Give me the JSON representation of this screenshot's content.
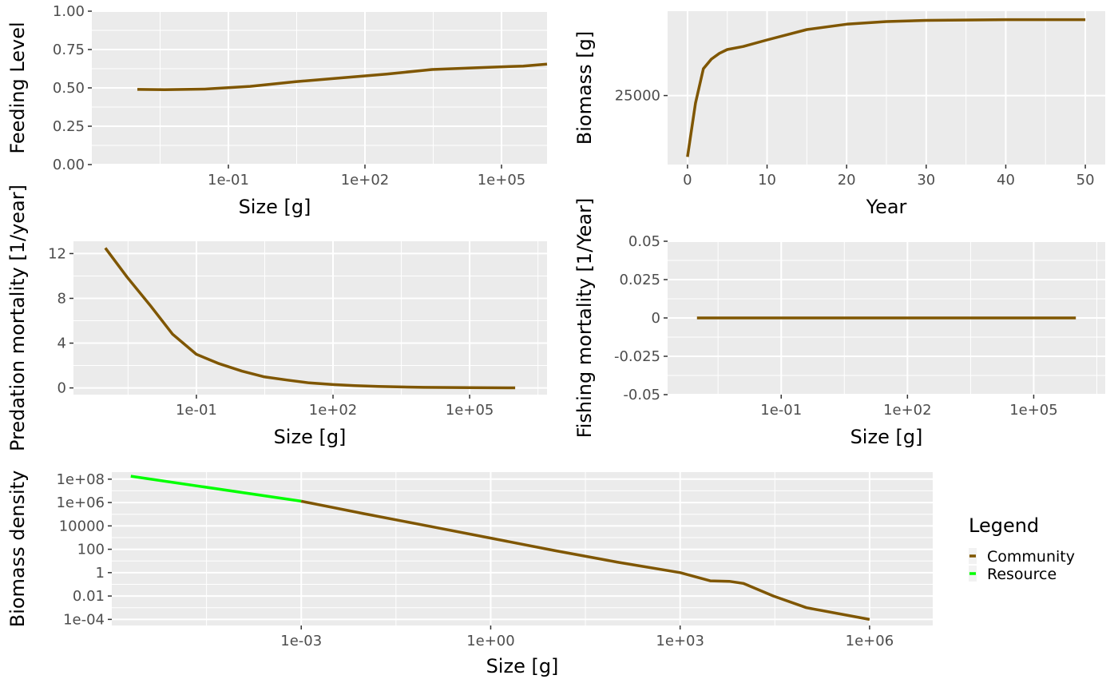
{
  "colors": {
    "community": "#7f5600",
    "resource": "#00ff00",
    "panel_bg": "#ebebeb",
    "grid": "#ffffff",
    "tick_text": "#4d4d4d"
  },
  "chart_data": [
    {
      "id": "feeding-level",
      "type": "line",
      "xlabel": "Size [g]",
      "ylabel": "Feeding Level",
      "xscale": "log10",
      "xlim": [
        0.0001,
        1000000
      ],
      "ylim": [
        0,
        1
      ],
      "xticks": [
        {
          "value": 0.1,
          "label": "1e-01"
        },
        {
          "value": 100,
          "label": "1e+02"
        },
        {
          "value": 100000,
          "label": "1e+05"
        }
      ],
      "yticks": [
        {
          "value": 0,
          "label": "0.00"
        },
        {
          "value": 0.25,
          "label": "0.25"
        },
        {
          "value": 0.5,
          "label": "0.50"
        },
        {
          "value": 0.75,
          "label": "0.75"
        },
        {
          "value": 1,
          "label": "1.00"
        }
      ],
      "grid": true,
      "series": [
        {
          "color": "community",
          "x": [
            0.001,
            0.004,
            0.03,
            0.3,
            3,
            30,
            300,
            3000,
            30000,
            300000,
            1000000
          ],
          "y": [
            0.49,
            0.488,
            0.492,
            0.51,
            0.54,
            0.565,
            0.59,
            0.62,
            0.632,
            0.642,
            0.655
          ]
        }
      ]
    },
    {
      "id": "biomass-time",
      "type": "line",
      "xlabel": "Year",
      "ylabel": "Biomass [g]",
      "xscale": "linear",
      "xlim": [
        -2.5,
        52.5
      ],
      "ylim": [
        7000,
        47000
      ],
      "xticks": [
        {
          "value": 0,
          "label": "0"
        },
        {
          "value": 10,
          "label": "10"
        },
        {
          "value": 20,
          "label": "20"
        },
        {
          "value": 30,
          "label": "30"
        },
        {
          "value": 40,
          "label": "40"
        },
        {
          "value": 50,
          "label": "50"
        }
      ],
      "yticks": [
        {
          "value": 25000,
          "label": "25000"
        }
      ],
      "grid": true,
      "series": [
        {
          "color": "community",
          "x": [
            0,
            1,
            2,
            3,
            4,
            5,
            7,
            10,
            15,
            20,
            25,
            30,
            40,
            50
          ],
          "y": [
            9000,
            23000,
            32000,
            34500,
            36000,
            37000,
            37800,
            39500,
            42200,
            43600,
            44300,
            44600,
            44800,
            44800
          ]
        }
      ]
    },
    {
      "id": "predation-mortality",
      "type": "line",
      "xlabel": "Size [g]",
      "ylabel": "Predation mortality [1/year]",
      "xscale": "log10",
      "xlim": [
        0.0002,
        5000000
      ],
      "ylim": [
        -0.6,
        13.1
      ],
      "xticks": [
        {
          "value": 0.1,
          "label": "1e-01"
        },
        {
          "value": 100,
          "label": "1e+02"
        },
        {
          "value": 100000,
          "label": "1e+05"
        }
      ],
      "yticks": [
        {
          "value": 0,
          "label": "0"
        },
        {
          "value": 4,
          "label": "4"
        },
        {
          "value": 8,
          "label": "8"
        },
        {
          "value": 12,
          "label": "12"
        }
      ],
      "grid": true,
      "series": [
        {
          "color": "community",
          "x": [
            0.001,
            0.003,
            0.01,
            0.03,
            0.1,
            0.3,
            1,
            3,
            10,
            30,
            100,
            300,
            1000,
            10000,
            100000,
            1000000
          ],
          "y": [
            12.5,
            9.9,
            7.3,
            4.8,
            3.0,
            2.2,
            1.5,
            1.0,
            0.7,
            0.45,
            0.3,
            0.2,
            0.13,
            0.05,
            0.02,
            0.01
          ]
        }
      ]
    },
    {
      "id": "fishing-mortality",
      "type": "line",
      "xlabel": "Size [g]",
      "ylabel": "Fishing mortality [1/Year]",
      "xscale": "log10",
      "xlim": [
        0.0002,
        5000000
      ],
      "ylim": [
        -0.05,
        0.05
      ],
      "xticks": [
        {
          "value": 0.1,
          "label": "1e-01"
        },
        {
          "value": 100,
          "label": "1e+02"
        },
        {
          "value": 100000,
          "label": "1e+05"
        }
      ],
      "yticks": [
        {
          "value": -0.05,
          "label": "-0.05"
        },
        {
          "value": -0.025,
          "label": "-0.025"
        },
        {
          "value": 0,
          "label": "0"
        },
        {
          "value": 0.025,
          "label": "0.025"
        },
        {
          "value": 0.05,
          "label": "0.05"
        }
      ],
      "grid": true,
      "series": [
        {
          "color": "community",
          "x": [
            0.001,
            1000000
          ],
          "y": [
            0,
            0
          ]
        }
      ]
    },
    {
      "id": "biomass-density",
      "type": "line",
      "xlabel": "Size [g]",
      "ylabel": "Biomass density",
      "xscale": "log10",
      "yscale": "log10",
      "xlim": [
        1e-06,
        10000000
      ],
      "ylim": [
        3e-05,
        400000000
      ],
      "xticks": [
        {
          "value": 0.001,
          "label": "1e-03"
        },
        {
          "value": 1,
          "label": "1e+00"
        },
        {
          "value": 1000,
          "label": "1e+03"
        },
        {
          "value": 1000000,
          "label": "1e+06"
        }
      ],
      "yticks": [
        {
          "value": 0.0001,
          "label": "1e-04"
        },
        {
          "value": 0.01,
          "label": "0.01"
        },
        {
          "value": 1,
          "label": "1"
        },
        {
          "value": 100,
          "label": "100"
        },
        {
          "value": 10000,
          "label": "10000"
        },
        {
          "value": 1000000,
          "label": "1e+06"
        },
        {
          "value": 100000000,
          "label": "1e+08"
        }
      ],
      "grid": true,
      "legend": {
        "title": "Legend",
        "position": "right",
        "entries": [
          {
            "label": "Community",
            "color": "community"
          },
          {
            "label": "Resource",
            "color": "resource"
          }
        ]
      },
      "series": [
        {
          "name": "Community",
          "color": "community",
          "x": [
            0.001,
            0.01,
            0.1,
            1,
            10,
            100,
            1000,
            3000,
            6000,
            10000,
            30000,
            100000,
            1000000
          ],
          "y": [
            1300000,
            110000,
            10000,
            900,
            80,
            8,
            1,
            0.2,
            0.18,
            0.12,
            0.01,
            0.001,
            0.0001
          ]
        },
        {
          "name": "Resource",
          "color": "resource",
          "x": [
            2e-06,
            0.001
          ],
          "y": [
            180000000,
            1300000
          ]
        }
      ]
    }
  ]
}
